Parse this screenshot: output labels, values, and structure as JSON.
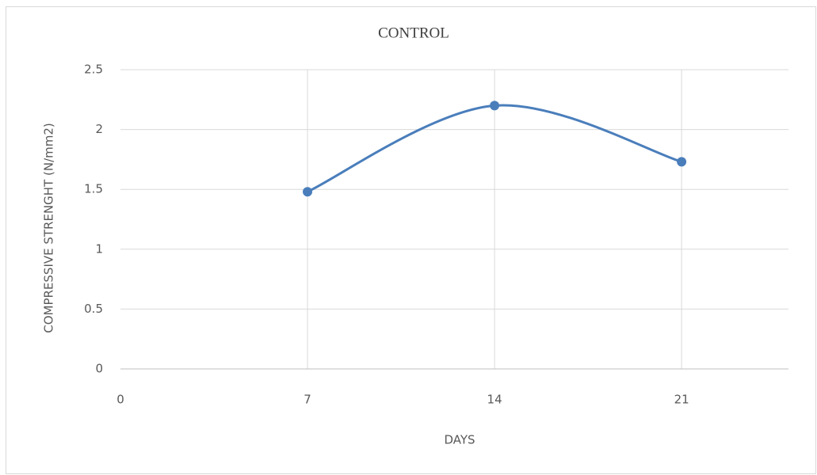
{
  "chart_data": {
    "type": "line",
    "title": "CONTROL",
    "x_label": "DAYS",
    "y_label": "COMPRESSIVE STRENGHT  (N/mm2)",
    "x": [
      7,
      14,
      21
    ],
    "series": [
      {
        "name": "CONTROL",
        "color": "#4a7ebb",
        "values": [
          1.48,
          2.2,
          1.73
        ]
      }
    ],
    "xlim": [
      0,
      25
    ],
    "xticks": [
      0,
      7,
      14,
      21
    ],
    "ylim": [
      0,
      2.5
    ],
    "yticks": [
      0,
      0.5,
      1,
      1.5,
      2,
      2.5
    ],
    "grid": true,
    "smooth": true
  }
}
